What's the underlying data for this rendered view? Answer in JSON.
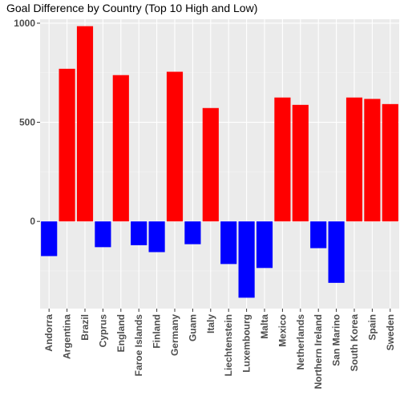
{
  "chart_data": {
    "type": "bar",
    "title": "Goal Difference by Country (Top 10 High and Low)",
    "xlabel": "",
    "ylabel": "",
    "ylim": [
      -440,
      1020
    ],
    "yticks": [
      0,
      500,
      1000
    ],
    "grid": true,
    "legend": "none",
    "categories": [
      "Andorra",
      "Argentina",
      "Brazil",
      "Cyprus",
      "England",
      "Faroe Islands",
      "Finland",
      "Germany",
      "Guam",
      "Italy",
      "Liechtenstein",
      "Luxembourg",
      "Malta",
      "Mexico",
      "Netherlands",
      "Northern Ireland",
      "San Marino",
      "South Korea",
      "Spain",
      "Sweden"
    ],
    "values": [
      -175,
      770,
      985,
      -130,
      738,
      -120,
      -155,
      755,
      -115,
      572,
      -215,
      -385,
      -235,
      625,
      588,
      -135,
      -310,
      625,
      618,
      592
    ],
    "colors": {
      "positive": "#ff0000",
      "negative": "#0000ff",
      "panel": "#ebebeb",
      "grid_major": "#ffffff",
      "grid_minor": "#f5f5f5"
    }
  }
}
